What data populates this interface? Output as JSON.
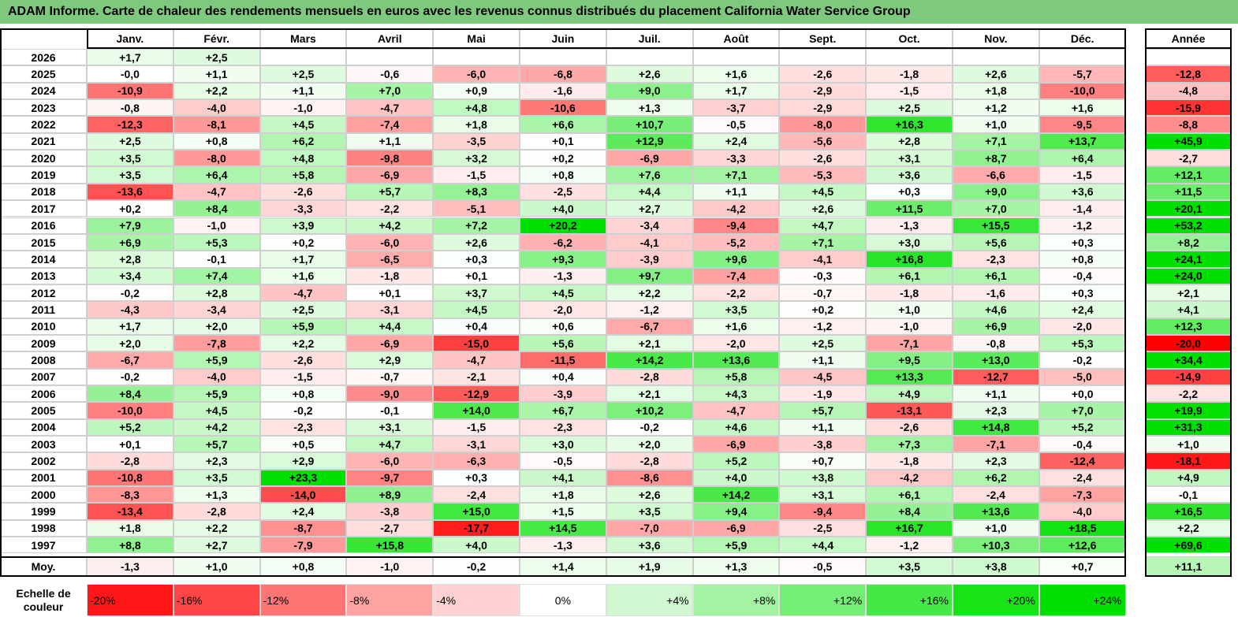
{
  "title": "ADAM Informe. Carte de chaleur des rendements mensuels en euros avec les revenus connus distribués du placement California Water Service Group",
  "chart_data": {
    "type": "heatmap",
    "columns": [
      "Janv.",
      "Févr.",
      "Mars",
      "Avril",
      "Mai",
      "Juin",
      "Juil.",
      "Août",
      "Sept.",
      "Oct.",
      "Nov.",
      "Déc."
    ],
    "year_column": "Année",
    "rows": [
      {
        "label": "2026",
        "values": [
          "+1,7",
          "+2,5",
          "",
          "",
          "",
          "",
          "",
          "",
          "",
          "",
          "",
          ""
        ],
        "year": ""
      },
      {
        "label": "2025",
        "values": [
          "-0,0",
          "+1,1",
          "+2,5",
          "-0,6",
          "-6,0",
          "-6,8",
          "+2,6",
          "+1,6",
          "-2,6",
          "-1,8",
          "+2,6",
          "-5,7"
        ],
        "year": "-12,8"
      },
      {
        "label": "2024",
        "values": [
          "-10,9",
          "+2,2",
          "+1,1",
          "+7,0",
          "+0,9",
          "-1,6",
          "+9,0",
          "+1,7",
          "-2,9",
          "-1,5",
          "+1,8",
          "-10,0"
        ],
        "year": "-4,8"
      },
      {
        "label": "2023",
        "values": [
          "-0,8",
          "-4,0",
          "-1,0",
          "-4,7",
          "+4,8",
          "-10,6",
          "+1,3",
          "-3,7",
          "-2,9",
          "+2,5",
          "+1,2",
          "+1,6"
        ],
        "year": "-15,9"
      },
      {
        "label": "2022",
        "values": [
          "-12,3",
          "-8,1",
          "+4,5",
          "-7,4",
          "+1,8",
          "+6,6",
          "+10,7",
          "-0,5",
          "-8,0",
          "+16,3",
          "+1,0",
          "-9,5"
        ],
        "year": "-8,8"
      },
      {
        "label": "2021",
        "values": [
          "+2,5",
          "+0,8",
          "+6,2",
          "+1,1",
          "-3,5",
          "+0,1",
          "+12,9",
          "+2,4",
          "-5,6",
          "+2,8",
          "+7,1",
          "+13,7"
        ],
        "year": "+45,9"
      },
      {
        "label": "2020",
        "values": [
          "+3,5",
          "-8,0",
          "+4,8",
          "-9,8",
          "+3,2",
          "+0,2",
          "-6,9",
          "-3,3",
          "-2,6",
          "+3,1",
          "+8,7",
          "+6,4"
        ],
        "year": "-2,7"
      },
      {
        "label": "2019",
        "values": [
          "+3,5",
          "+6,4",
          "+5,8",
          "-6,9",
          "-1,5",
          "+0,8",
          "+7,6",
          "+7,1",
          "-5,3",
          "+3,6",
          "-6,6",
          "-1,5"
        ],
        "year": "+12,1"
      },
      {
        "label": "2018",
        "values": [
          "-13,6",
          "-4,7",
          "-2,6",
          "+5,7",
          "+8,3",
          "-2,5",
          "+4,4",
          "+1,1",
          "+4,5",
          "+0,3",
          "+9,0",
          "+3,6"
        ],
        "year": "+11,5"
      },
      {
        "label": "2017",
        "values": [
          "+0,2",
          "+8,4",
          "-3,3",
          "-2,2",
          "-5,1",
          "+4,0",
          "+2,7",
          "-4,2",
          "+2,6",
          "+11,5",
          "+7,0",
          "-1,4"
        ],
        "year": "+20,1"
      },
      {
        "label": "2016",
        "values": [
          "+7,9",
          "-1,0",
          "+3,9",
          "+4,2",
          "+7,2",
          "+20,2",
          "-3,4",
          "-9,4",
          "+4,7",
          "-1,3",
          "+15,5",
          "-1,2"
        ],
        "year": "+53,2"
      },
      {
        "label": "2015",
        "values": [
          "+6,9",
          "+5,3",
          "+0,2",
          "-6,0",
          "+2,6",
          "-6,2",
          "-4,1",
          "-5,2",
          "+7,1",
          "+3,0",
          "+5,6",
          "+0,3"
        ],
        "year": "+8,2"
      },
      {
        "label": "2014",
        "values": [
          "+2,8",
          "-0,1",
          "+1,7",
          "-6,5",
          "+0,3",
          "+9,3",
          "-3,9",
          "+9,6",
          "-4,1",
          "+16,8",
          "-2,3",
          "+0,8"
        ],
        "year": "+24,1"
      },
      {
        "label": "2013",
        "values": [
          "+3,4",
          "+7,4",
          "+1,6",
          "-1,8",
          "+0,1",
          "-1,3",
          "+9,7",
          "-7,4",
          "-0,3",
          "+6,1",
          "+6,1",
          "-0,4"
        ],
        "year": "+24,0"
      },
      {
        "label": "2012",
        "values": [
          "-0,2",
          "+2,8",
          "-4,7",
          "+0,1",
          "+3,7",
          "+4,5",
          "+2,2",
          "-2,2",
          "-0,7",
          "-1,8",
          "-1,6",
          "+0,3"
        ],
        "year": "+2,1"
      },
      {
        "label": "2011",
        "values": [
          "-4,3",
          "-3,4",
          "+2,5",
          "-3,1",
          "+4,5",
          "-2,0",
          "-1,2",
          "+3,5",
          "+0,2",
          "+1,0",
          "+4,6",
          "+2,4"
        ],
        "year": "+4,1"
      },
      {
        "label": "2010",
        "values": [
          "+1,7",
          "+2,0",
          "+5,9",
          "+4,4",
          "+0,4",
          "+0,6",
          "-6,7",
          "+1,6",
          "-1,2",
          "-1,0",
          "+6,9",
          "-2,0"
        ],
        "year": "+12,3"
      },
      {
        "label": "2009",
        "values": [
          "+2,0",
          "-7,8",
          "+2,2",
          "-6,9",
          "-15,0",
          "+5,6",
          "+2,1",
          "-2,0",
          "+2,5",
          "-7,1",
          "-0,8",
          "+5,3"
        ],
        "year": "-20,0"
      },
      {
        "label": "2008",
        "values": [
          "-6,7",
          "+5,9",
          "-2,6",
          "+2,9",
          "-4,7",
          "-11,5",
          "+14,2",
          "+13,6",
          "+1,1",
          "+9,5",
          "+13,0",
          "-0,2"
        ],
        "year": "+34,4"
      },
      {
        "label": "2007",
        "values": [
          "-0,2",
          "-4,0",
          "-1,5",
          "-0,7",
          "-2,1",
          "+0,4",
          "-2,8",
          "+5,8",
          "-4,5",
          "+13,3",
          "-12,7",
          "-5,0"
        ],
        "year": "-14,9"
      },
      {
        "label": "2006",
        "values": [
          "+8,4",
          "+5,9",
          "+0,8",
          "-9,0",
          "-12,9",
          "-3,9",
          "+2,1",
          "+4,3",
          "-1,9",
          "+4,9",
          "+1,1",
          "+0,0"
        ],
        "year": "-2,2"
      },
      {
        "label": "2005",
        "values": [
          "-10,0",
          "+4,5",
          "-0,2",
          "-0,1",
          "+14,0",
          "+6,7",
          "+10,2",
          "-4,7",
          "+5,7",
          "-13,1",
          "+2,3",
          "+7,0"
        ],
        "year": "+19,9"
      },
      {
        "label": "2004",
        "values": [
          "+5,2",
          "+4,2",
          "-2,3",
          "+3,1",
          "-1,5",
          "-2,3",
          "-0,2",
          "+4,6",
          "+1,1",
          "-2,6",
          "+14,8",
          "+5,2"
        ],
        "year": "+31,3"
      },
      {
        "label": "2003",
        "values": [
          "+0,1",
          "+5,7",
          "+0,5",
          "+4,7",
          "-3,1",
          "+3,0",
          "+2,0",
          "-6,9",
          "-3,8",
          "+7,3",
          "-7,1",
          "-0,4"
        ],
        "year": "+1,0"
      },
      {
        "label": "2002",
        "values": [
          "-2,8",
          "+2,3",
          "+2,9",
          "-6,0",
          "-6,3",
          "-0,5",
          "-2,8",
          "+5,2",
          "+0,7",
          "-1,8",
          "+2,3",
          "-12,4"
        ],
        "year": "-18,1"
      },
      {
        "label": "2001",
        "values": [
          "-10,8",
          "+3,5",
          "+23,3",
          "-9,7",
          "+0,3",
          "+4,1",
          "-8,6",
          "+4,0",
          "+3,8",
          "-4,2",
          "+6,2",
          "-2,4"
        ],
        "year": "+4,9"
      },
      {
        "label": "2000",
        "values": [
          "-8,3",
          "+1,3",
          "-14,0",
          "+8,9",
          "-2,4",
          "+1,8",
          "+2,6",
          "+14,2",
          "+3,1",
          "+6,1",
          "-2,4",
          "-7,3"
        ],
        "year": "-0,1"
      },
      {
        "label": "1999",
        "values": [
          "-13,4",
          "-2,8",
          "+2,4",
          "-3,8",
          "+15,0",
          "+1,5",
          "+3,5",
          "+9,4",
          "-9,4",
          "+8,4",
          "+13,6",
          "-4,0"
        ],
        "year": "+16,5"
      },
      {
        "label": "1998",
        "values": [
          "+1,8",
          "+2,2",
          "-8,7",
          "-2,7",
          "-17,7",
          "+14,5",
          "-7,0",
          "-6,9",
          "-2,5",
          "+16,7",
          "+1,0",
          "+18,5"
        ],
        "year": "+2,2"
      },
      {
        "label": "1997",
        "values": [
          "+8,8",
          "+2,7",
          "-7,9",
          "+15,8",
          "+4,0",
          "-1,3",
          "+3,6",
          "+5,9",
          "+4,4",
          "-1,2",
          "+10,3",
          "+12,6"
        ],
        "year": "+69,6"
      }
    ],
    "average": {
      "label": "Moy.",
      "values": [
        "-1,3",
        "+1,0",
        "+0,8",
        "-1,0",
        "-0,2",
        "+1,4",
        "+1,9",
        "+1,3",
        "-0,5",
        "+3,5",
        "+3,8",
        "+0,7"
      ],
      "year": "+11,1"
    },
    "scale": {
      "label": "Echelle de couleur",
      "steps": [
        "-20%",
        "-16%",
        "-12%",
        "-8%",
        "-4%",
        "0%",
        "+4%",
        "+8%",
        "+12%",
        "+16%",
        "+20%",
        "+24%"
      ],
      "step_values": [
        -20,
        -16,
        -12,
        -8,
        -4,
        0,
        4,
        8,
        12,
        16,
        20,
        24
      ]
    },
    "colors": {
      "negative": "#ff0000",
      "neutral": "#ffffff",
      "positive": "#00e000",
      "title_bar": "#7ec97e"
    }
  }
}
